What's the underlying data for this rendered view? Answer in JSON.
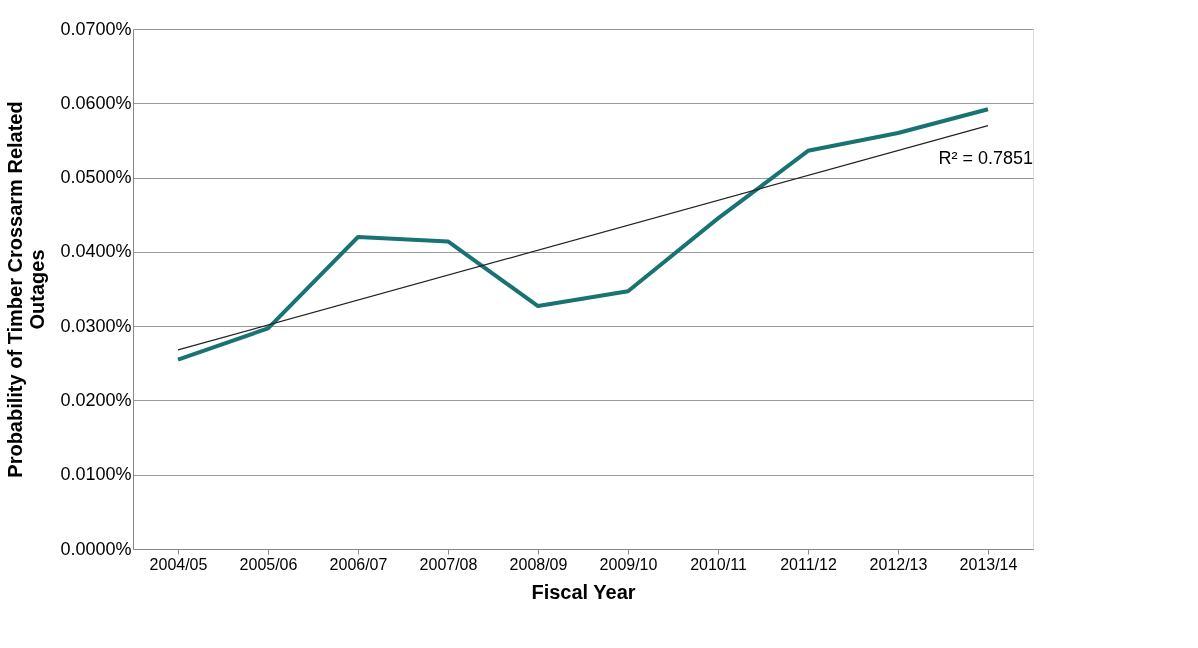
{
  "chart_data": {
    "type": "line",
    "xlabel": "Fiscal Year",
    "ylabel": "Probability of Timber Crossarm Related Outages",
    "categories": [
      "2004/05",
      "2005/06",
      "2006/07",
      "2007/08",
      "2008/09",
      "2009/10",
      "2010/11",
      "2011/12",
      "2012/13",
      "2013/14"
    ],
    "series": [
      {
        "color": "#1a7373",
        "values": [
          0.0255,
          0.0297,
          0.042,
          0.0414,
          0.0327,
          0.0347,
          0.0445,
          0.0536,
          0.056,
          0.0592
        ]
      },
      {
        "type": "line",
        "color": "#222222",
        "x": [
          "2004/05",
          "2013/14"
        ],
        "values": [
          0.0268,
          0.057
        ]
      }
    ],
    "ylim": [
      0,
      0.07
    ],
    "yticks": [
      {
        "value": 0,
        "label": "0.0000%"
      },
      {
        "value": 0.01,
        "label": "0.0100%"
      },
      {
        "value": 0.02,
        "label": "0.0200%"
      },
      {
        "value": 0.03,
        "label": "0.0300%"
      },
      {
        "value": 0.04,
        "label": "0.0400%"
      },
      {
        "value": 0.05,
        "label": "0.0500%"
      },
      {
        "value": 0.06,
        "label": "0.0600%"
      },
      {
        "value": 0.07,
        "label": "0.0700%"
      }
    ],
    "grid": "y",
    "marker": "none",
    "line_style": "solid",
    "annotations": [
      "R² = 0.7851"
    ]
  }
}
